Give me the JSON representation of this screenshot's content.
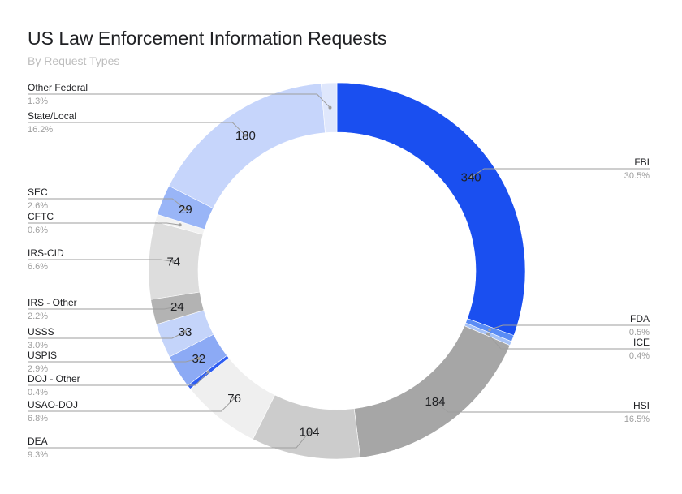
{
  "chart_data": {
    "type": "pie",
    "donut": true,
    "title": "US Law Enforcement Information Requests",
    "subtitle": "By Request Types",
    "slices": [
      {
        "name": "FBI",
        "value": 340,
        "percent": "30.5%",
        "color": "#1a4ff0",
        "value_label": "340"
      },
      {
        "name": "FDA",
        "value": 6,
        "percent": "0.5%",
        "color": "#5a8cf5",
        "value_label": ""
      },
      {
        "name": "ICE",
        "value": 4,
        "percent": "0.4%",
        "color": "#a6c2f7",
        "value_label": ""
      },
      {
        "name": "HSI",
        "value": 184,
        "percent": "16.5%",
        "color": "#a6a6a6",
        "value_label": "184"
      },
      {
        "name": "DEA",
        "value": 104,
        "percent": "9.3%",
        "color": "#cccccc",
        "value_label": "104"
      },
      {
        "name": "USAO-DOJ",
        "value": 76,
        "percent": "6.8%",
        "color": "#efefef",
        "value_label": "76"
      },
      {
        "name": "DOJ - Other",
        "value": 4,
        "percent": "0.4%",
        "color": "#2e5df2",
        "value_label": ""
      },
      {
        "name": "USPIS",
        "value": 32,
        "percent": "2.9%",
        "color": "#8caaf5",
        "value_label": "32"
      },
      {
        "name": "USSS",
        "value": 33,
        "percent": "3.0%",
        "color": "#c4d4fa",
        "value_label": "33"
      },
      {
        "name": "IRS - Other",
        "value": 24,
        "percent": "2.2%",
        "color": "#b3b3b3",
        "value_label": "24"
      },
      {
        "name": "IRS-CID",
        "value": 74,
        "percent": "6.6%",
        "color": "#dddddd",
        "value_label": "74"
      },
      {
        "name": "CFTC",
        "value": 7,
        "percent": "0.6%",
        "color": "#f2f2f2",
        "value_label": ""
      },
      {
        "name": "SEC",
        "value": 29,
        "percent": "2.6%",
        "color": "#99b5f7",
        "value_label": "29"
      },
      {
        "name": "State/Local",
        "value": 180,
        "percent": "16.2%",
        "color": "#c6d5fb",
        "value_label": "180"
      },
      {
        "name": "Other Federal",
        "value": 15,
        "percent": "1.3%",
        "color": "#dfe7fc",
        "value_label": ""
      }
    ],
    "legend_placement": "leader-lines"
  }
}
